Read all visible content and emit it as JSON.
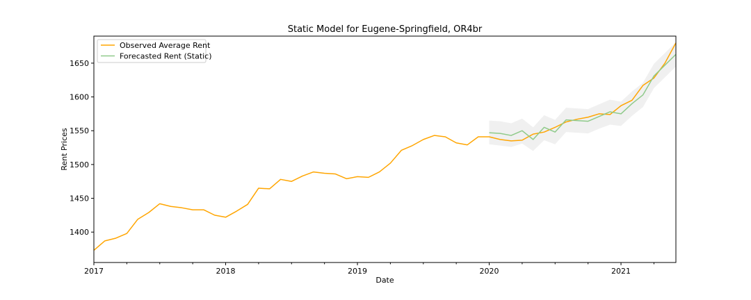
{
  "chart_data": {
    "type": "line",
    "title": "Static Model for Eugene-Springfield, OR4br",
    "xlabel": "Date",
    "ylabel": "Rent Prices",
    "xlim": [
      "2017-01",
      "2021-06"
    ],
    "ylim": [
      1355,
      1690
    ],
    "x_ticks": [
      "2017",
      "2018",
      "2019",
      "2020",
      "2021"
    ],
    "y_ticks": [
      1400,
      1450,
      1500,
      1550,
      1600,
      1650
    ],
    "grid": false,
    "legend": "top-left",
    "colors": {
      "observed": "#ffa500",
      "forecast": "#8fca8a",
      "band": "#d3d3d3"
    },
    "series": [
      {
        "name": "Observed Average Rent",
        "x": [
          "2017-01",
          "2017-02",
          "2017-03",
          "2017-04",
          "2017-05",
          "2017-06",
          "2017-07",
          "2017-08",
          "2017-09",
          "2017-10",
          "2017-11",
          "2017-12",
          "2018-01",
          "2018-02",
          "2018-03",
          "2018-04",
          "2018-05",
          "2018-06",
          "2018-07",
          "2018-08",
          "2018-09",
          "2018-10",
          "2018-11",
          "2018-12",
          "2019-01",
          "2019-02",
          "2019-03",
          "2019-04",
          "2019-05",
          "2019-06",
          "2019-07",
          "2019-08",
          "2019-09",
          "2019-10",
          "2019-11",
          "2019-12",
          "2020-01",
          "2020-02",
          "2020-03",
          "2020-04",
          "2020-05",
          "2020-06",
          "2020-07",
          "2020-08",
          "2020-09",
          "2020-10",
          "2020-11",
          "2020-12",
          "2021-01",
          "2021-02",
          "2021-03",
          "2021-04",
          "2021-05",
          "2021-06"
        ],
        "values": [
          1373,
          1387,
          1391,
          1398,
          1419,
          1429,
          1442,
          1438,
          1436,
          1433,
          1433,
          1425,
          1422,
          1431,
          1441,
          1465,
          1464,
          1478,
          1475,
          1483,
          1489,
          1487,
          1486,
          1479,
          1482,
          1481,
          1489,
          1502,
          1521,
          1528,
          1537,
          1543,
          1541,
          1532,
          1529,
          1541,
          1541,
          1537,
          1535,
          1536,
          1545,
          1548,
          1555,
          1563,
          1567,
          1570,
          1575,
          1574,
          1587,
          1595,
          1617,
          1628,
          1650,
          1680
        ]
      },
      {
        "name": "Forecasted Rent (Static)",
        "x": [
          "2020-01",
          "2020-02",
          "2020-03",
          "2020-04",
          "2020-05",
          "2020-06",
          "2020-07",
          "2020-08",
          "2020-09",
          "2020-10",
          "2020-11",
          "2020-12",
          "2021-01",
          "2021-02",
          "2021-03",
          "2021-04",
          "2021-05",
          "2021-06"
        ],
        "values": [
          1547,
          1546,
          1543,
          1550,
          1537,
          1555,
          1548,
          1566,
          1565,
          1564,
          1571,
          1578,
          1575,
          1590,
          1603,
          1631,
          1647,
          1663
        ],
        "lower": [
          1530,
          1528,
          1526,
          1531,
          1520,
          1536,
          1530,
          1548,
          1547,
          1546,
          1553,
          1559,
          1557,
          1572,
          1585,
          1613,
          1629,
          1645
        ],
        "upper": [
          1565,
          1564,
          1561,
          1568,
          1555,
          1573,
          1566,
          1584,
          1583,
          1582,
          1589,
          1596,
          1593,
          1608,
          1621,
          1649,
          1665,
          1681
        ]
      }
    ]
  }
}
